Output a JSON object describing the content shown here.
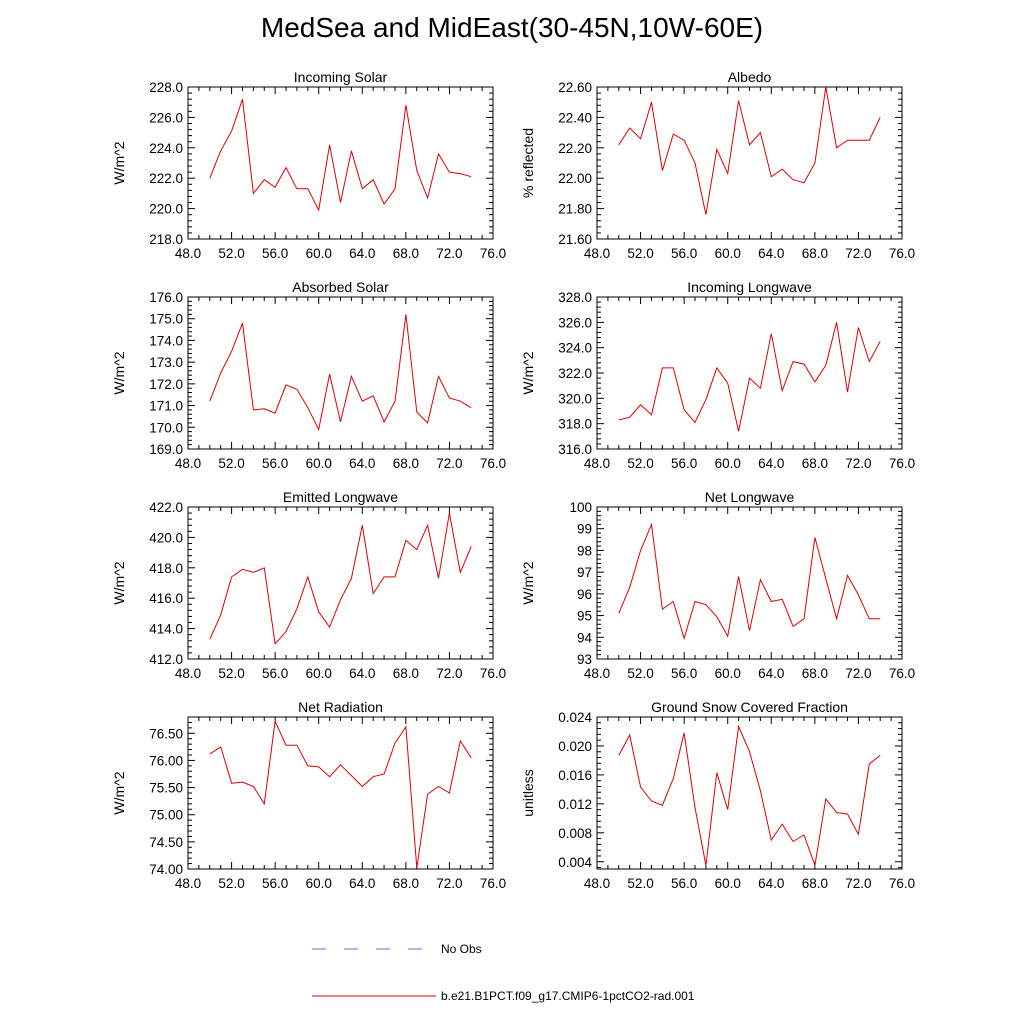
{
  "title": "MedSea and MidEast(30-45N,10W-60E)",
  "legend": [
    {
      "label": "No Obs",
      "color": "#6a6ac8",
      "style": "dashed"
    },
    {
      "label": "b.e21.B1PCT.f09_g17.CMIP6-1pctCO2-rad.001",
      "color": "#e00000",
      "style": "solid"
    }
  ],
  "chart_data": [
    {
      "type": "line",
      "title": "Incoming Solar",
      "xlabel": "",
      "ylabel": "W/m^2",
      "xlim": [
        48,
        76
      ],
      "ylim": [
        218,
        228
      ],
      "xticks": [
        "48.0",
        "52.0",
        "56.0",
        "60.0",
        "64.0",
        "68.0",
        "72.0",
        "76.0"
      ],
      "yticks": [
        "218.0",
        "220.0",
        "222.0",
        "224.0",
        "226.0",
        "228.0"
      ],
      "series": [
        {
          "color": "#e00000",
          "x": [
            50,
            51,
            52,
            53,
            54,
            55,
            56,
            57,
            58,
            59,
            60,
            61,
            62,
            63,
            64,
            65,
            66,
            67,
            68,
            69,
            70,
            71,
            72,
            73,
            74
          ],
          "y": [
            222.0,
            223.8,
            225.1,
            227.2,
            221.0,
            221.9,
            221.4,
            222.7,
            221.3,
            221.3,
            219.9,
            224.2,
            220.4,
            223.8,
            221.3,
            221.9,
            220.3,
            221.3,
            226.8,
            222.5,
            220.7,
            223.6,
            222.4,
            222.3,
            222.1
          ]
        }
      ]
    },
    {
      "type": "line",
      "title": "Albedo",
      "xlabel": "",
      "ylabel": "% reflected",
      "xlim": [
        48,
        76
      ],
      "ylim": [
        21.6,
        22.6
      ],
      "xticks": [
        "48.0",
        "52.0",
        "56.0",
        "60.0",
        "64.0",
        "68.0",
        "72.0",
        "76.0"
      ],
      "yticks": [
        "21.60",
        "21.80",
        "22.00",
        "22.20",
        "22.40",
        "22.60"
      ],
      "series": [
        {
          "color": "#e00000",
          "x": [
            50,
            51,
            52,
            53,
            54,
            55,
            56,
            57,
            58,
            59,
            60,
            61,
            62,
            63,
            64,
            65,
            66,
            67,
            68,
            69,
            70,
            71,
            72,
            73,
            74
          ],
          "y": [
            22.22,
            22.33,
            22.26,
            22.5,
            22.05,
            22.29,
            22.25,
            22.1,
            21.76,
            22.19,
            22.03,
            22.51,
            22.22,
            22.3,
            22.01,
            22.06,
            21.99,
            21.97,
            22.1,
            22.6,
            22.2,
            22.25,
            22.25,
            22.25,
            22.4
          ]
        }
      ]
    },
    {
      "type": "line",
      "title": "Absorbed Solar",
      "xlabel": "",
      "ylabel": "W/m^2",
      "xlim": [
        48,
        76
      ],
      "ylim": [
        169,
        176
      ],
      "xticks": [
        "48.0",
        "52.0",
        "56.0",
        "60.0",
        "64.0",
        "68.0",
        "72.0",
        "76.0"
      ],
      "yticks": [
        "169.0",
        "170.0",
        "171.0",
        "172.0",
        "173.0",
        "174.0",
        "175.0",
        "176.0"
      ],
      "series": [
        {
          "color": "#e00000",
          "x": [
            50,
            51,
            52,
            53,
            54,
            55,
            56,
            57,
            58,
            59,
            60,
            61,
            62,
            63,
            64,
            65,
            66,
            67,
            68,
            69,
            70,
            71,
            72,
            73,
            74
          ],
          "y": [
            171.2,
            172.5,
            173.5,
            174.8,
            170.8,
            170.85,
            170.65,
            171.95,
            171.75,
            170.9,
            169.9,
            172.45,
            170.25,
            172.35,
            171.2,
            171.45,
            170.25,
            171.2,
            175.2,
            170.7,
            170.2,
            172.35,
            171.35,
            171.2,
            170.9
          ]
        }
      ]
    },
    {
      "type": "line",
      "title": "Incoming Longwave",
      "xlabel": "",
      "ylabel": "W/m^2",
      "xlim": [
        48,
        76
      ],
      "ylim": [
        316,
        328
      ],
      "xticks": [
        "48.0",
        "52.0",
        "56.0",
        "60.0",
        "64.0",
        "68.0",
        "72.0",
        "76.0"
      ],
      "yticks": [
        "316.0",
        "318.0",
        "320.0",
        "322.0",
        "324.0",
        "326.0",
        "328.0"
      ],
      "series": [
        {
          "color": "#e00000",
          "x": [
            50,
            51,
            52,
            53,
            54,
            55,
            56,
            57,
            58,
            59,
            60,
            61,
            62,
            63,
            64,
            65,
            66,
            67,
            68,
            69,
            70,
            71,
            72,
            73,
            74
          ],
          "y": [
            318.3,
            318.5,
            319.5,
            318.7,
            322.4,
            322.4,
            319.1,
            318.1,
            319.9,
            322.4,
            321.2,
            317.4,
            321.6,
            320.8,
            325.1,
            320.6,
            322.9,
            322.7,
            321.3,
            322.6,
            326.0,
            320.5,
            325.6,
            322.9,
            324.5
          ]
        }
      ]
    },
    {
      "type": "line",
      "title": "Emitted Longwave",
      "xlabel": "",
      "ylabel": "W/m^2",
      "xlim": [
        48,
        76
      ],
      "ylim": [
        412,
        422
      ],
      "xticks": [
        "48.0",
        "52.0",
        "56.0",
        "60.0",
        "64.0",
        "68.0",
        "72.0",
        "76.0"
      ],
      "yticks": [
        "412.0",
        "414.0",
        "416.0",
        "418.0",
        "420.0",
        "422.0"
      ],
      "series": [
        {
          "color": "#e00000",
          "x": [
            50,
            51,
            52,
            53,
            54,
            55,
            56,
            57,
            58,
            59,
            60,
            61,
            62,
            63,
            64,
            65,
            66,
            67,
            68,
            69,
            70,
            71,
            72,
            73,
            74
          ],
          "y": [
            413.3,
            414.9,
            417.4,
            417.9,
            417.7,
            418.0,
            413.0,
            413.8,
            415.3,
            417.4,
            415.1,
            414.1,
            415.9,
            417.3,
            420.8,
            416.3,
            417.4,
            417.4,
            419.8,
            419.2,
            420.8,
            417.3,
            421.6,
            417.7,
            419.4
          ]
        }
      ]
    },
    {
      "type": "line",
      "title": "Net Longwave",
      "xlabel": "",
      "ylabel": "W/m^2",
      "xlim": [
        48,
        76
      ],
      "ylim": [
        93,
        100
      ],
      "xticks": [
        "48.0",
        "52.0",
        "56.0",
        "60.0",
        "64.0",
        "68.0",
        "72.0",
        "76.0"
      ],
      "yticks": [
        "93",
        "94",
        "95",
        "96",
        "97",
        "98",
        "99",
        "100"
      ],
      "series": [
        {
          "color": "#e00000",
          "x": [
            50,
            51,
            52,
            53,
            54,
            55,
            56,
            57,
            58,
            59,
            60,
            61,
            62,
            63,
            64,
            65,
            66,
            67,
            68,
            69,
            70,
            71,
            72,
            73,
            74
          ],
          "y": [
            95.1,
            96.3,
            98.0,
            99.2,
            95.3,
            95.65,
            93.95,
            95.65,
            95.5,
            94.95,
            94.05,
            96.8,
            94.3,
            96.65,
            95.65,
            95.75,
            94.5,
            94.85,
            98.6,
            96.7,
            94.85,
            96.85,
            95.95,
            94.85,
            94.85
          ]
        }
      ]
    },
    {
      "type": "line",
      "title": "Net Radiation",
      "xlabel": "",
      "ylabel": "W/m^2",
      "xlim": [
        48,
        76
      ],
      "ylim": [
        74.0,
        76.8
      ],
      "xticks": [
        "48.0",
        "52.0",
        "56.0",
        "60.0",
        "64.0",
        "68.0",
        "72.0",
        "76.0"
      ],
      "yticks": [
        "74.00",
        "74.50",
        "75.00",
        "75.50",
        "76.00",
        "76.50"
      ],
      "series": [
        {
          "color": "#e00000",
          "x": [
            50,
            51,
            52,
            53,
            54,
            55,
            56,
            57,
            58,
            59,
            60,
            61,
            62,
            63,
            64,
            65,
            66,
            67,
            68,
            69,
            70,
            71,
            72,
            73,
            74
          ],
          "y": [
            76.12,
            76.25,
            75.58,
            75.6,
            75.52,
            75.2,
            76.72,
            76.28,
            76.28,
            75.9,
            75.88,
            75.7,
            75.92,
            75.72,
            75.52,
            75.7,
            75.75,
            76.32,
            76.62,
            74.02,
            75.38,
            75.52,
            75.4,
            76.36,
            76.05
          ]
        }
      ]
    },
    {
      "type": "line",
      "title": "Ground Snow Covered Fraction",
      "xlabel": "",
      "ylabel": "unitless",
      "xlim": [
        48,
        76
      ],
      "ylim": [
        0.003,
        0.024
      ],
      "xticks": [
        "48.0",
        "52.0",
        "56.0",
        "60.0",
        "64.0",
        "68.0",
        "72.0",
        "76.0"
      ],
      "yticks": [
        "0.004",
        "0.008",
        "0.012",
        "0.016",
        "0.020",
        "0.024"
      ],
      "series": [
        {
          "color": "#e00000",
          "x": [
            50,
            51,
            52,
            53,
            54,
            55,
            56,
            57,
            58,
            59,
            60,
            61,
            62,
            63,
            64,
            65,
            66,
            67,
            68,
            69,
            70,
            71,
            72,
            73,
            74
          ],
          "y": [
            0.0187,
            0.0215,
            0.0143,
            0.0124,
            0.0118,
            0.0155,
            0.0218,
            0.0115,
            0.0035,
            0.0163,
            0.0112,
            0.0227,
            0.0192,
            0.0138,
            0.007,
            0.0092,
            0.0068,
            0.0077,
            0.0035,
            0.0127,
            0.0108,
            0.0106,
            0.0078,
            0.0175,
            0.0187
          ]
        }
      ]
    }
  ]
}
